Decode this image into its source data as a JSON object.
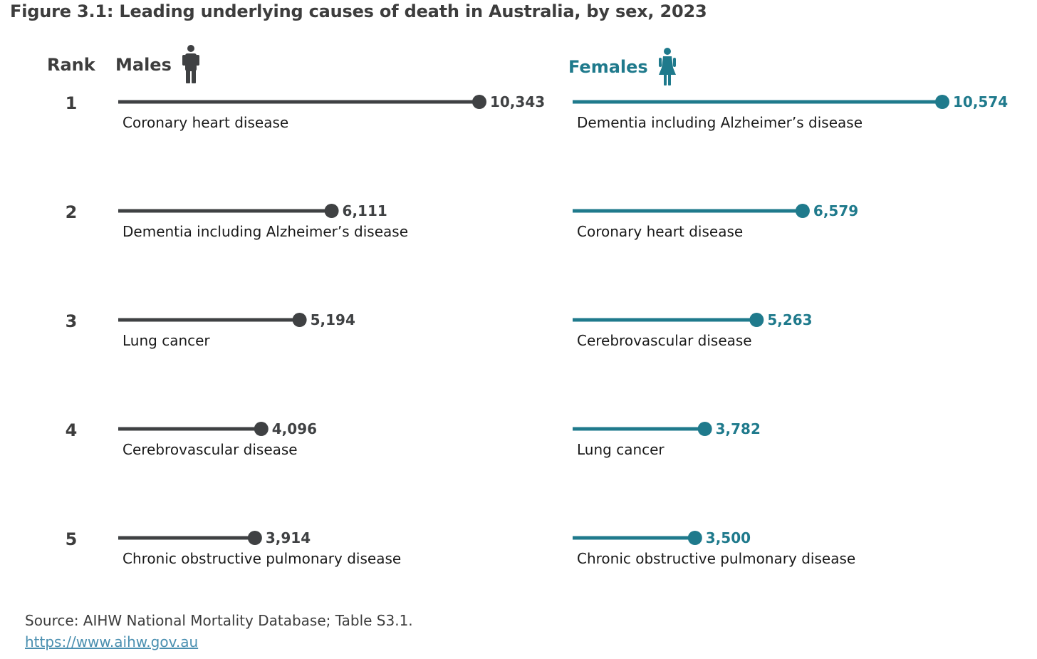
{
  "title": "Figure 3.1: Leading underlying causes of death in Australia, by sex, 2023",
  "colors": {
    "males": "#3f4143",
    "females": "#1f7a8c",
    "text": "#3d3d3d"
  },
  "chart_data": {
    "type": "bar",
    "subtype": "lollipop",
    "title": "Figure 3.1: Leading underlying causes of death in Australia, by sex, 2023",
    "rank_label": "Rank",
    "categories": [
      "1",
      "2",
      "3",
      "4",
      "5"
    ],
    "series": [
      {
        "name": "Males",
        "icon": "male-person-icon",
        "color": "#3f4143",
        "values": [
          10343,
          6111,
          5194,
          4096,
          3914
        ],
        "value_labels": [
          "10,343",
          "6,111",
          "5,194",
          "4,096",
          "3,914"
        ],
        "causes": [
          "Coronary heart disease",
          "Dementia including Alzheimer’s disease",
          "Lung cancer",
          "Cerebrovascular disease",
          "Chronic obstructive pulmonary disease"
        ]
      },
      {
        "name": "Females",
        "icon": "female-person-icon",
        "color": "#1f7a8c",
        "values": [
          10574,
          6579,
          5263,
          3782,
          3500
        ],
        "value_labels": [
          "10,574",
          "6,579",
          "5,263",
          "3,782",
          "3,500"
        ],
        "causes": [
          "Dementia including Alzheimer’s disease",
          "Coronary heart disease",
          "Cerebrovascular disease",
          "Lung cancer",
          "Chronic obstructive pulmonary disease"
        ]
      }
    ]
  },
  "footer": {
    "source": "Source: AIHW National Mortality Database; Table S3.1.",
    "link": "https://www.aihw.gov.au"
  }
}
